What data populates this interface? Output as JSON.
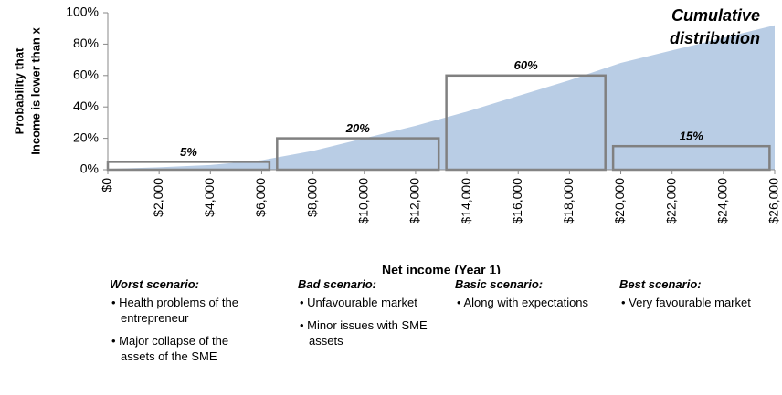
{
  "chart_data": {
    "type": "area",
    "annotation": [
      "Cumulative",
      "distribution"
    ],
    "xlabel": "Net income (Year 1)",
    "ylabel": [
      "Probability that",
      "Income is lower than x"
    ],
    "x": [
      0,
      2000,
      4000,
      6000,
      8000,
      10000,
      12000,
      14000,
      16000,
      18000,
      20000,
      22000,
      24000,
      26000
    ],
    "values": [
      0.5,
      1.5,
      3,
      6,
      12,
      20,
      28,
      37,
      47,
      57,
      68,
      76,
      84,
      92
    ],
    "color": "#b9cde5",
    "xlim": [
      0,
      26000
    ],
    "ylim": [
      0,
      100
    ],
    "xticks": [
      {
        "value": 0,
        "label": "$0"
      },
      {
        "value": 2000,
        "label": "$2,000"
      },
      {
        "value": 4000,
        "label": "$4,000"
      },
      {
        "value": 6000,
        "label": "$6,000"
      },
      {
        "value": 8000,
        "label": "$8,000"
      },
      {
        "value": 10000,
        "label": "$10,000"
      },
      {
        "value": 12000,
        "label": "$12,000"
      },
      {
        "value": 14000,
        "label": "$14,000"
      },
      {
        "value": 16000,
        "label": "$16,000"
      },
      {
        "value": 18000,
        "label": "$18,000"
      },
      {
        "value": 20000,
        "label": "$20,000"
      },
      {
        "value": 22000,
        "label": "$22,000"
      },
      {
        "value": 24000,
        "label": "$24,000"
      },
      {
        "value": 26000,
        "label": "$26,000"
      }
    ],
    "yticks": [
      {
        "value": 0,
        "label": "0%"
      },
      {
        "value": 20,
        "label": "20%"
      },
      {
        "value": 40,
        "label": "40%"
      },
      {
        "value": 60,
        "label": "60%"
      },
      {
        "value": 80,
        "label": "80%"
      },
      {
        "value": 100,
        "label": "100%"
      }
    ],
    "scenario_bars": {
      "starts": [
        0,
        6600,
        13200,
        19700
      ],
      "ends": [
        6300,
        12900,
        19400,
        25800
      ],
      "values": [
        5,
        20,
        60,
        15
      ],
      "value_labels": [
        "5%",
        "20%",
        "60%",
        "15%"
      ],
      "color": "#808080"
    }
  },
  "scenarios": [
    {
      "title": "Worst scenario:",
      "bullets": [
        "Health problems of the entrepreneur",
        "Major collapse of the assets of the SME"
      ]
    },
    {
      "title": "Bad scenario:",
      "bullets": [
        "Unfavourable market",
        "Minor issues with SME assets"
      ]
    },
    {
      "title": "Basic scenario:",
      "bullets": [
        "Along with expectations"
      ]
    },
    {
      "title": "Best scenario:",
      "bullets": [
        "Very favourable market"
      ]
    }
  ]
}
